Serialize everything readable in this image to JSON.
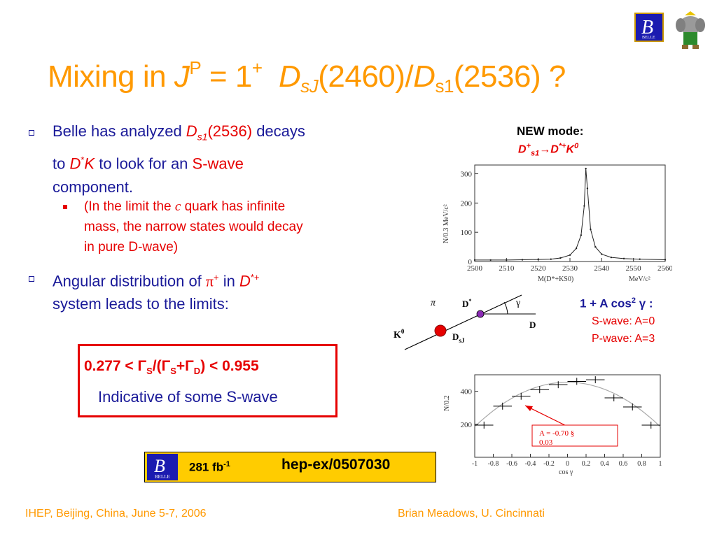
{
  "title": {
    "prefix": "Mixing in ",
    "j": "J",
    "p": "P",
    "eq": " = 1",
    "plus": "+",
    "d1": "D",
    "d1sub": "sJ",
    "m1": "(2460)/",
    "d2": "D",
    "d2sub": "s1",
    "m2": "(2536) ?"
  },
  "bullets": {
    "b1": {
      "t1": "Belle has analyzed ",
      "ds": "D",
      "dssub": "s1",
      "mass": "(2536)",
      "t2": " decays",
      "t3": "to ",
      "d": "D",
      "dsup": "*",
      "k": "K",
      "t4": " to look for an ",
      "swave": "S-wave",
      "t5": "component."
    },
    "sub1": {
      "t1": "(In the limit the ",
      "c": "c",
      "t2": " quark has infinite",
      "line2": "mass, the narrow states would decay",
      "line3": "in pure D-wave)"
    },
    "b2": {
      "t1": "Angular distribution of ",
      "pi": "π",
      "pisup": "+",
      "t2": " in ",
      "d": "D",
      "dsup": "*+",
      "line2": "system leads to the limits:"
    }
  },
  "result": {
    "lhs": "0.277 < Γ",
    "s1": "S",
    "mid": "/(Γ",
    "s2": "S",
    "plus": "+Γ",
    "d": "D",
    "rhs": ") < 0.955",
    "note": "Indicative of some S-wave"
  },
  "reference": {
    "lumi": "281 fb",
    "lumi_sup": "-1",
    "paper": "hep-ex/0507030",
    "logo_text": "BELLE"
  },
  "mode": {
    "header": "NEW mode:",
    "decay_d": "D",
    "decay_dsup": "+",
    "decay_dsub": "s1",
    "arrow": "→",
    "decay_d2": "D",
    "decay_d2sup": "*+",
    "decay_k": "K",
    "decay_ksup": "0"
  },
  "diagram": {
    "pi": "π",
    "gamma": "γ",
    "dstar": "D",
    "dstar_sup": "*",
    "d": "D",
    "k0": "K",
    "k0_sup": "0",
    "dsj": "D",
    "dsj_sub": "sJ"
  },
  "formula": {
    "line1": "1 + A cos",
    "line1_sup": "2",
    "line1_tail": " γ :",
    "swave": "S-wave:  A=0",
    "pwave": "P-wave:  A=3"
  },
  "annotation": {
    "line1": "A = -0.70 §",
    "line2": "0.03"
  },
  "footer": {
    "left": "IHEP, Beijing, China, June 5-7, 2006",
    "right": "Brian Meadows, U. Cincinnati"
  },
  "colors": {
    "title": "#ff9900",
    "text_blue": "#1a1a99",
    "accent_red": "#e60000",
    "ref_yellow": "#ffcc00"
  },
  "chart_data": [
    {
      "type": "line",
      "ylabel": "N/0.3 MeV/c²",
      "xlabel": "M(D*+KS0)",
      "xunit": "MeV/c²",
      "xlim": [
        2500,
        2560
      ],
      "ylim": [
        0,
        330
      ],
      "xticks": [
        2500,
        2510,
        2520,
        2530,
        2540,
        2550,
        2560
      ],
      "yticks": [
        0,
        100,
        200,
        300
      ],
      "x": [
        2500,
        2505,
        2510,
        2515,
        2520,
        2524,
        2527,
        2530,
        2532,
        2533.5,
        2534.5,
        2535,
        2535.5,
        2536.5,
        2538,
        2540,
        2543,
        2547,
        2552,
        2560
      ],
      "y": [
        5,
        5,
        5,
        6,
        7,
        8,
        12,
        22,
        45,
        90,
        190,
        318,
        250,
        110,
        50,
        25,
        14,
        10,
        8,
        6
      ]
    },
    {
      "type": "scatter",
      "ylabel": "N/0.2",
      "xlabel": "cos γ",
      "xlim": [
        -1,
        1
      ],
      "ylim": [
        0,
        500
      ],
      "xticks": [
        -1,
        -0.8,
        -0.6,
        -0.4,
        -0.2,
        0,
        0.2,
        0.4,
        0.6,
        0.8,
        1
      ],
      "xtick_labels": [
        "-1",
        "-0.8",
        "-0.6",
        "-0.4",
        "-0.2",
        "0",
        "0.2",
        "0.4",
        "0.6",
        "0.8",
        "1"
      ],
      "yticks": [
        200,
        400
      ],
      "x": [
        -0.9,
        -0.7,
        -0.5,
        -0.3,
        -0.1,
        0.1,
        0.3,
        0.5,
        0.7,
        0.9
      ],
      "y": [
        195,
        310,
        370,
        410,
        440,
        460,
        470,
        360,
        305,
        195
      ],
      "fit": "1 + A cos2"
    }
  ]
}
